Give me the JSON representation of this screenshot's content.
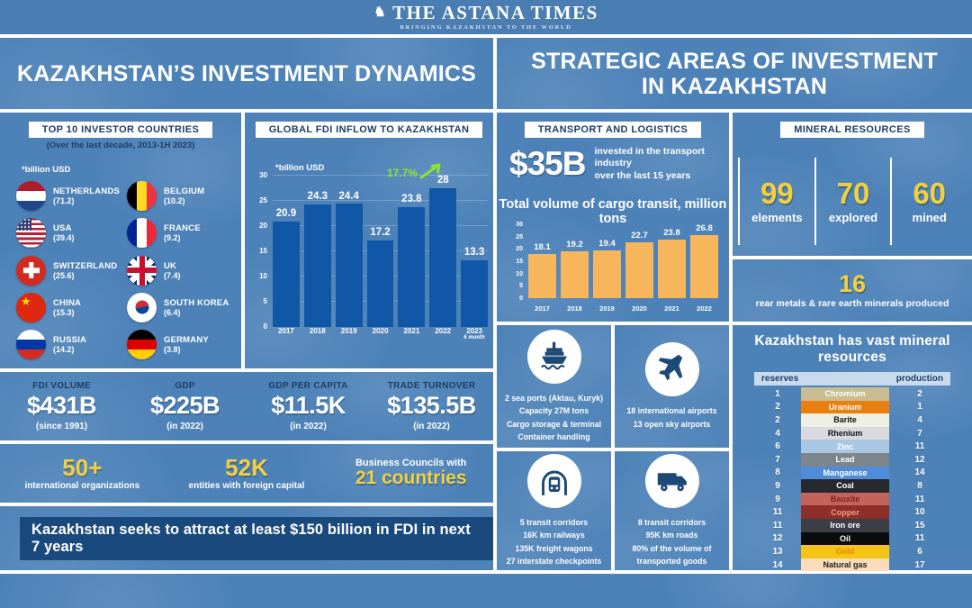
{
  "colors": {
    "panel_blue": "#4d82b8",
    "masthead_blue": "#4a7db1",
    "navy_text": "#1c3f66",
    "banner_navy": "#1a4a7d",
    "accent_yellow": "#f2cf3e",
    "fdi_bar_blue": "#1157a8",
    "cargo_bar_orange": "#f7b55c",
    "growth_green": "#8ae62e",
    "table_header_bg": "#c9daed"
  },
  "masthead": {
    "logo_glyph": "♞",
    "title": "THE ASTANA TIMES",
    "tagline": "BRINGING KAZAKHSTAN TO THE WORLD"
  },
  "left": {
    "title": "KAZAKHSTAN’S INVESTMENT DYNAMICS",
    "investors": {
      "heading": "TOP 10 INVESTOR COUNTRIES",
      "subheading": "(Over the last decade, 2013-1H 2023)",
      "unit_note": "*billion USD",
      "col1": [
        {
          "country": "NETHERLANDS",
          "value": "(71.2)",
          "flag": "netherlands"
        },
        {
          "country": "USA",
          "value": "(39.4)",
          "flag": "usa"
        },
        {
          "country": "SWITZERLAND",
          "value": "(25.6)",
          "flag": "switzerland"
        },
        {
          "country": "CHINA",
          "value": "(15.3)",
          "flag": "china"
        },
        {
          "country": "RUSSIA",
          "value": "(14.2)",
          "flag": "russia"
        }
      ],
      "col2": [
        {
          "country": "BELGIUM",
          "value": "(10.2)",
          "flag": "belgium"
        },
        {
          "country": "FRANCE",
          "value": "(9.2)",
          "flag": "france"
        },
        {
          "country": "UK",
          "value": "(7.4)",
          "flag": "uk"
        },
        {
          "country": "SOUTH KOREA",
          "value": "(6.4)",
          "flag": "south-korea"
        },
        {
          "country": "GERMANY",
          "value": "(3.8)",
          "flag": "germany"
        }
      ]
    },
    "stats": [
      {
        "label": "FDI VOLUME",
        "value": "$431B",
        "note": "(since 1991)"
      },
      {
        "label": "GDP",
        "value": "$225B",
        "note": "(in 2022)"
      },
      {
        "label": "GDP PER CAPITA",
        "value": "$11.5K",
        "note": "(in 2022)"
      },
      {
        "label": "TRADE TURNOVER",
        "value": "$135.5B",
        "note": "(in 2022)"
      }
    ],
    "highlights": {
      "orgs": {
        "value": "50+",
        "label": "international organizations"
      },
      "entities": {
        "value": "52K",
        "label": "entities with foreign capital"
      },
      "councils": {
        "prefix": "Business Councils with",
        "value": "21 countries"
      }
    },
    "banner": "Kazakhstan seeks to attract at least $150 billion in FDI in next 7 years"
  },
  "right": {
    "title": "STRATEGIC AREAS OF INVESTMENT IN KAZAKHSTAN",
    "transport": {
      "heading": "TRANSPORT AND LOGISTICS",
      "invested_value": "$35B",
      "invested_note_line1": "invested in the transport industry",
      "invested_note_line2": "over the last 15 years"
    },
    "minerals": {
      "heading": "MINERAL RESOURCES",
      "stats": [
        {
          "value": "99",
          "label": "elements"
        },
        {
          "value": "70",
          "label": "explored"
        },
        {
          "value": "60",
          "label": "mined"
        }
      ],
      "rare_value": "16",
      "rare_label": "rear metals & rare earth minerals produced"
    },
    "infra": [
      {
        "icon": "cargo-ship",
        "lines": [
          "2 sea ports (Aktau, Kuryk)",
          "Capacity 27M tons",
          "Cargo storage & terminal",
          "Container handling"
        ]
      },
      {
        "icon": "airplane",
        "lines": [
          "18 international airports",
          "13 open sky airports"
        ]
      },
      {
        "icon": "train",
        "lines": [
          "5 transit corridors",
          "16K km railways",
          "135K freight wagons",
          "27 interstate checkpoints"
        ]
      },
      {
        "icon": "truck",
        "lines": [
          "8 transit corridors",
          "95K km roads",
          "80% of the volume of",
          "transported goods"
        ]
      }
    ],
    "mineral_table": {
      "title": "Kazakhstan has vast mineral resources",
      "col_reserves": "reserves",
      "col_production": "production",
      "rows": [
        {
          "reserves": "1",
          "mineral": "Chromium",
          "production": "2",
          "bg": "#c9bc90",
          "fg": "#ffffff"
        },
        {
          "reserves": "2",
          "mineral": "Uranium",
          "production": "1",
          "bg": "#e87f10",
          "fg": "#ffffff"
        },
        {
          "reserves": "2",
          "mineral": "Barite",
          "production": "4",
          "bg": "#eff0e3",
          "fg": "#111111"
        },
        {
          "reserves": "4",
          "mineral": "Rhenium",
          "production": "7",
          "bg": "#d8dade",
          "fg": "#111111"
        },
        {
          "reserves": "6",
          "mineral": "Zinc",
          "production": "11",
          "bg": "#a9c6e3",
          "fg": "#ffffff"
        },
        {
          "reserves": "7",
          "mineral": "Lead",
          "production": "12",
          "bg": "#7d858d",
          "fg": "#ffffff"
        },
        {
          "reserves": "8",
          "mineral": "Manganese",
          "production": "14",
          "bg": "#4f8cd9",
          "fg": "#ffffff"
        },
        {
          "reserves": "9",
          "mineral": "Coal",
          "production": "8",
          "bg": "#26292e",
          "fg": "#ffffff"
        },
        {
          "reserves": "9",
          "mineral": "Bauxite",
          "production": "11",
          "bg": "#c4635b",
          "fg": "#7e231d"
        },
        {
          "reserves": "11",
          "mineral": "Copper",
          "production": "10",
          "bg": "#8e2f2b",
          "fg": "#f0a07d"
        },
        {
          "reserves": "11",
          "mineral": "Iron ore",
          "production": "15",
          "bg": "#3b3f45",
          "fg": "#ffffff"
        },
        {
          "reserves": "12",
          "mineral": "Oil",
          "production": "11",
          "bg": "#0b0b0d",
          "fg": "#ffffff"
        },
        {
          "reserves": "13",
          "mineral": "Gold",
          "production": "6",
          "bg": "#f6c414",
          "fg": "#e08d00"
        },
        {
          "reserves": "14",
          "mineral": "Natural gas",
          "production": "17",
          "bg": "#f9dcba",
          "fg": "#222222"
        }
      ]
    }
  },
  "chart_data": [
    {
      "id": "global_fdi_inflow",
      "type": "bar",
      "title": "GLOBAL FDI INFLOW TO KAZAKHSTAN",
      "unit_note": "*billion USD",
      "ylabel": "billion USD",
      "categories": [
        "2017",
        "2018",
        "2019",
        "2020",
        "2021",
        "2022",
        "2023"
      ],
      "category_notes": [
        "",
        "",
        "",
        "",
        "",
        "",
        "6 month"
      ],
      "values": [
        20.9,
        24.3,
        24.4,
        17.2,
        23.8,
        28,
        13.3
      ],
      "yticks": [
        0,
        5,
        10,
        15,
        20,
        25,
        30
      ],
      "ylim": [
        0,
        30
      ],
      "grid": true,
      "legend": "none",
      "bar_color": "#1157a8",
      "annotation": {
        "text": "17.7%",
        "color": "#8ae62e",
        "between": [
          "2021",
          "2022"
        ]
      }
    },
    {
      "id": "cargo_transit_volume",
      "type": "bar",
      "title": "Total volume of cargo transit, million tons",
      "categories": [
        "2017",
        "2018",
        "2019",
        "2020",
        "2021",
        "2022"
      ],
      "values": [
        18.1,
        19.2,
        19.4,
        22.7,
        23.8,
        26.8
      ],
      "yticks": [
        0,
        5,
        10,
        15,
        20,
        25,
        30
      ],
      "ylim": [
        0,
        30
      ],
      "grid": false,
      "legend": "none",
      "bar_color": "#f7b55c"
    }
  ]
}
